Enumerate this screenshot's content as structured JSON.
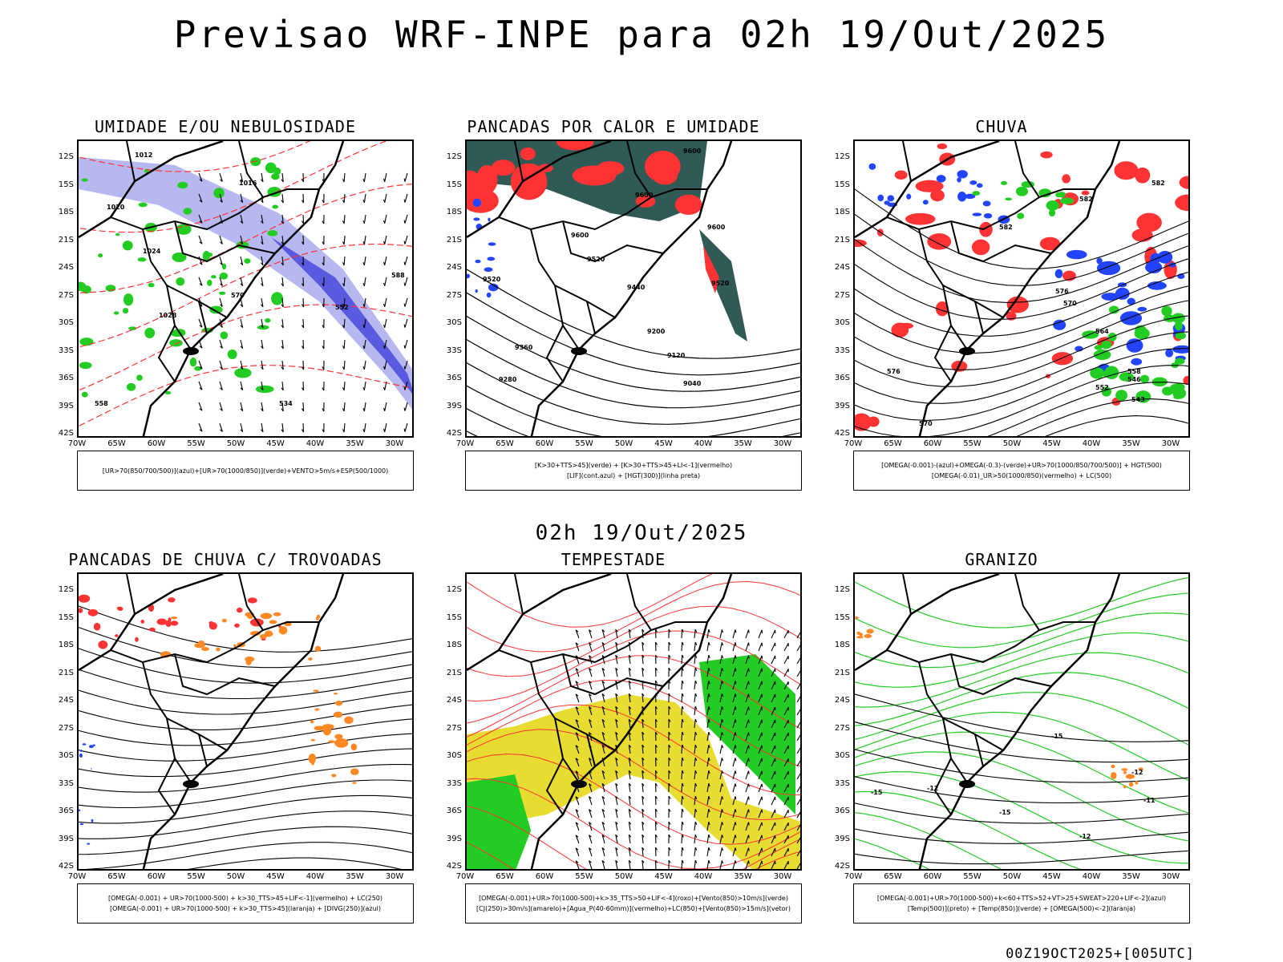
{
  "header": {
    "title": "Previsao WRF-INPE  para 02h 19/Out/2025",
    "mid_title": "02h 19/Out/2025",
    "footer": "00Z19OCT2025+[005UTC]"
  },
  "axes": {
    "lat_ticks": [
      "12S",
      "15S",
      "18S",
      "21S",
      "24S",
      "27S",
      "30S",
      "33S",
      "36S",
      "39S",
      "42S"
    ],
    "lon_ticks": [
      "70W",
      "65W",
      "60W",
      "55W",
      "50W",
      "45W",
      "40W",
      "35W",
      "30W"
    ]
  },
  "colors": {
    "green": "#22cc22",
    "red": "#ff3333",
    "blue": "#2244ff",
    "orange": "#ff8822",
    "yellow": "#e8dc30",
    "dark_teal": "#2f5a55",
    "lavender": "#b8b8f0",
    "purple_blue": "#5a5ae0"
  },
  "panels": [
    {
      "title": "UMIDADE E/OU NEBULOSIDADE",
      "legend": [
        "[UR>70(850/700/500)](azul)+[UR>70(1000/850)](verde)+VENTO>5m/s+ESP(500/1000)"
      ],
      "contour_labels": [
        "1012",
        "1016",
        "1020",
        "1024",
        "1028",
        "570",
        "552",
        "534",
        "558",
        "588"
      ]
    },
    {
      "title": "PANCADAS POR CALOR E UMIDADE",
      "legend": [
        "[K>30+TTS>45](verde) + [K>30+TTS>45+LI<-1](vermelho)",
        "[LIF](cont.azul) + [HGT(300)](linha preta)"
      ],
      "contour_labels": [
        "9600",
        "9600",
        "9600",
        "9520",
        "9520",
        "9440",
        "9360",
        "9280",
        "9200",
        "9120",
        "9040",
        "9520",
        "9600"
      ]
    },
    {
      "title": "CHUVA",
      "legend": [
        "[OMEGA(-0.001)-(azul)+OMEGA(-0.3)-(verde)+UR>70(1000/850/700/500)] + HGT(500)",
        "[OMEGA(-0.01)_UR>50(1000/850)(vermelho) + LC(500)"
      ],
      "contour_labels": [
        "582",
        "582",
        "576",
        "570",
        "564",
        "558",
        "552",
        "546",
        "543",
        "576",
        "570",
        "582"
      ]
    },
    {
      "title": "PANCADAS DE CHUVA C/ TROVOADAS",
      "legend": [
        "[OMEGA(-0.001) + UR>70(1000-500) + k>30_TTS>45+LIF<-1](vermelho) + LC(250)",
        "[OMEGA(-0.001) + UR>70(1000-500) + k>30_TTS>45](laranja) + [DIVG(250)](azul)"
      ],
      "contour_labels": []
    },
    {
      "title": "TEMPESTADE",
      "legend": [
        "[OMEGA(-0.001)+UR>70(1000-500)+k>35_TTS>50+LIF<-4](roxo)+[Vento(850)>10m/s](verde)",
        "[CJ(250)>30m/s](amarelo)+[Agua_P(40-60mm)](vermelho)+LC(850)+[Vento(850)>15m/s](vetor)"
      ],
      "contour_labels": []
    },
    {
      "title": "GRANIZO",
      "legend": [
        "[OMEGA(-0.001)+UR>70(1000-500)+k<60+TTS>52+VT>25+SWEAT>220+LIF<-2](azul)",
        "[Temp(500)](preto) + [Temp(850)](verde) + [OMEGA(500)<-2](laranja)"
      ],
      "contour_labels": [
        "-15",
        "-12",
        "-15",
        "-12",
        "-11",
        "-15",
        "-12"
      ]
    }
  ]
}
